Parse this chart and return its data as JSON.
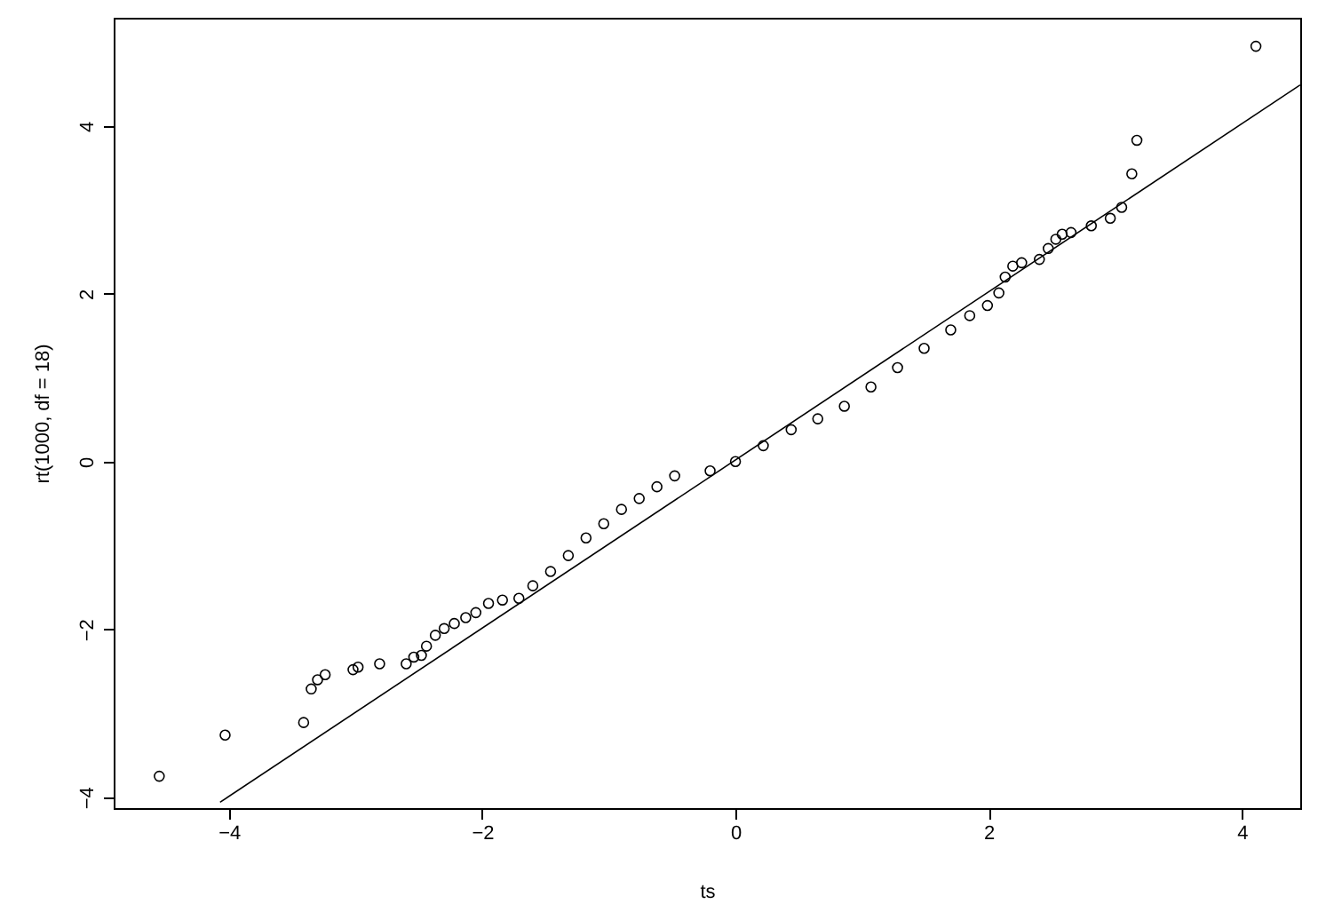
{
  "chart_data": {
    "type": "scatter",
    "xlabel": "ts",
    "ylabel": "rt(1000, df = 18)",
    "xlim": [
      -4.91,
      4.46
    ],
    "ylim": [
      -4.13,
      5.29
    ],
    "xticks": [
      -4,
      -2,
      0,
      2,
      4
    ],
    "yticks": [
      -4,
      -2,
      0,
      2,
      4
    ],
    "grid": false,
    "series": [
      {
        "marker": "circle",
        "color": "#000000",
        "x": [
          -4.55,
          -4.03,
          -3.41,
          -3.35,
          -3.3,
          -3.24,
          -3.02,
          -2.98,
          -2.81,
          -2.6,
          -2.54,
          -2.48,
          -2.44,
          -2.37,
          -2.3,
          -2.22,
          -2.13,
          -2.05,
          -1.95,
          -1.84,
          -1.71,
          -1.6,
          -1.46,
          -1.32,
          -1.18,
          -1.04,
          -0.9,
          -0.76,
          -0.62,
          -0.48,
          -0.2,
          0,
          0.22,
          0.44,
          0.65,
          0.86,
          1.07,
          1.28,
          1.49,
          1.7,
          1.85,
          1.99,
          2.08,
          2.13,
          2.19,
          2.26,
          2.4,
          2.47,
          2.53,
          2.58,
          2.65,
          2.81,
          2.96,
          3.05,
          3.13,
          3.17,
          4.11
        ],
        "values": [
          -3.75,
          -3.26,
          -3.11,
          -2.71,
          -2.6,
          -2.54,
          -2.48,
          -2.45,
          -2.41,
          -2.41,
          -2.33,
          -2.31,
          -2.2,
          -2.07,
          -1.99,
          -1.93,
          -1.86,
          -1.8,
          -1.69,
          -1.65,
          -1.63,
          -1.48,
          -1.31,
          -1.12,
          -0.91,
          -0.74,
          -0.57,
          -0.44,
          -0.3,
          -0.17,
          -0.11,
          0,
          0.19,
          0.38,
          0.51,
          0.66,
          0.89,
          1.12,
          1.35,
          1.57,
          1.74,
          1.86,
          2.01,
          2.2,
          2.33,
          2.37,
          2.41,
          2.54,
          2.65,
          2.71,
          2.73,
          2.81,
          2.9,
          3.03,
          3.43,
          3.83,
          4.95
        ]
      },
      {
        "type": "line",
        "marker": "none",
        "color": "#000000",
        "x": [
          -4.07,
          4.46
        ],
        "values": [
          -4.06,
          4.49
        ]
      }
    ]
  }
}
